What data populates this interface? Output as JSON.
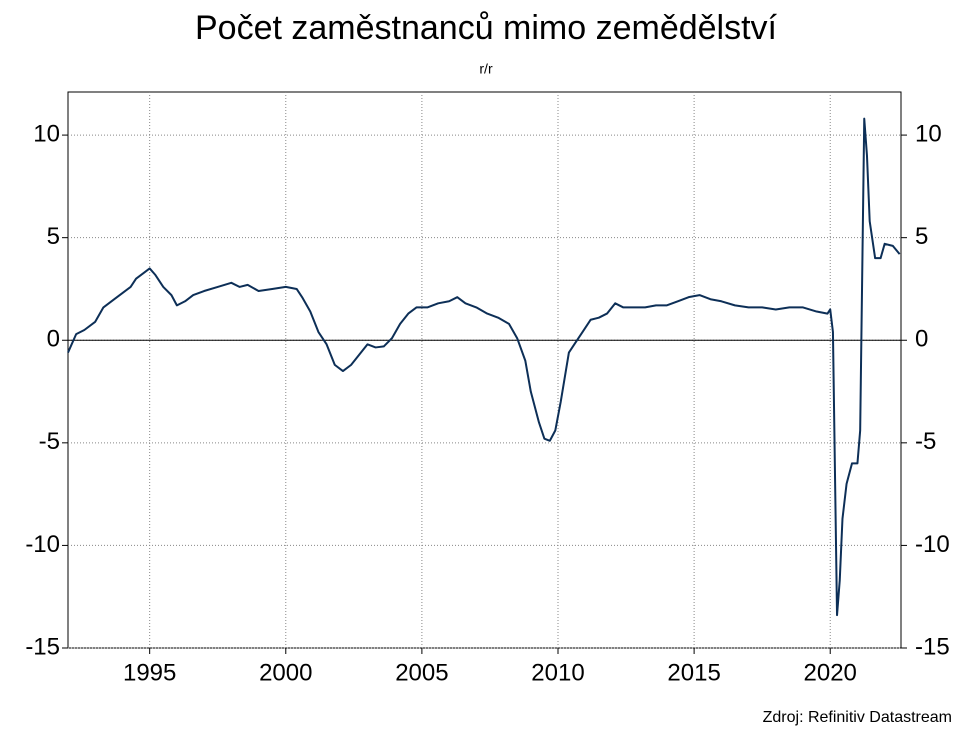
{
  "chart_data": {
    "type": "line",
    "title": "Počet zaměstnanců mimo zemědělství",
    "subtitle": "r/r",
    "source": "Zdroj: Refinitiv Datastream",
    "x": [
      1992.0,
      1992.3,
      1992.6,
      1993.0,
      1993.3,
      1993.7,
      1994.0,
      1994.3,
      1994.5,
      1994.8,
      1995.0,
      1995.2,
      1995.5,
      1995.8,
      1996.0,
      1996.3,
      1996.6,
      1997.0,
      1997.5,
      1998.0,
      1998.3,
      1998.6,
      1999.0,
      1999.5,
      2000.0,
      2000.4,
      2000.6,
      2000.9,
      2001.2,
      2001.5,
      2001.8,
      2002.1,
      2002.4,
      2002.7,
      2003.0,
      2003.3,
      2003.6,
      2003.9,
      2004.2,
      2004.5,
      2004.8,
      2005.2,
      2005.6,
      2006.0,
      2006.3,
      2006.6,
      2007.0,
      2007.4,
      2007.8,
      2008.2,
      2008.5,
      2008.8,
      2009.0,
      2009.3,
      2009.5,
      2009.7,
      2009.9,
      2010.1,
      2010.4,
      2010.6,
      2010.9,
      2011.2,
      2011.5,
      2011.8,
      2012.1,
      2012.4,
      2012.8,
      2013.2,
      2013.6,
      2014.0,
      2014.4,
      2014.8,
      2015.2,
      2015.6,
      2016.0,
      2016.5,
      2017.0,
      2017.5,
      2018.0,
      2018.5,
      2019.0,
      2019.5,
      2019.9,
      2020.0,
      2020.1,
      2020.25,
      2020.35,
      2020.45,
      2020.6,
      2020.8,
      2021.0,
      2021.1,
      2021.25,
      2021.35,
      2021.45,
      2021.65,
      2021.85,
      2022.0,
      2022.3,
      2022.55
    ],
    "series": [
      {
        "color": "#0d2f57",
        "values": [
          -0.6,
          0.3,
          0.5,
          0.9,
          1.6,
          2.0,
          2.3,
          2.6,
          3.0,
          3.3,
          3.5,
          3.2,
          2.6,
          2.2,
          1.7,
          1.9,
          2.2,
          2.4,
          2.6,
          2.8,
          2.6,
          2.7,
          2.4,
          2.5,
          2.6,
          2.5,
          2.1,
          1.4,
          0.4,
          -0.2,
          -1.2,
          -1.5,
          -1.2,
          -0.7,
          -0.2,
          -0.35,
          -0.3,
          0.1,
          0.8,
          1.3,
          1.6,
          1.6,
          1.8,
          1.9,
          2.1,
          1.8,
          1.6,
          1.3,
          1.1,
          0.8,
          0.1,
          -1.0,
          -2.5,
          -4.0,
          -4.8,
          -4.9,
          -4.4,
          -3.0,
          -0.6,
          -0.2,
          0.4,
          1.0,
          1.1,
          1.3,
          1.8,
          1.6,
          1.6,
          1.6,
          1.7,
          1.7,
          1.9,
          2.1,
          2.2,
          2.0,
          1.9,
          1.7,
          1.6,
          1.6,
          1.5,
          1.6,
          1.6,
          1.4,
          1.3,
          1.5,
          0.4,
          -13.4,
          -11.7,
          -8.7,
          -7.0,
          -6.0,
          -6.0,
          -4.4,
          10.8,
          9.0,
          5.8,
          4.0,
          4.0,
          4.7,
          4.6,
          4.2
        ]
      }
    ],
    "xlim": [
      1992.0,
      2022.6
    ],
    "xticks": [
      1995,
      2000,
      2005,
      2010,
      2015,
      2020
    ],
    "ylim": [
      -15,
      12.1
    ],
    "yticks": [
      -15,
      -10,
      -5,
      0,
      5,
      10
    ],
    "grid": true
  }
}
